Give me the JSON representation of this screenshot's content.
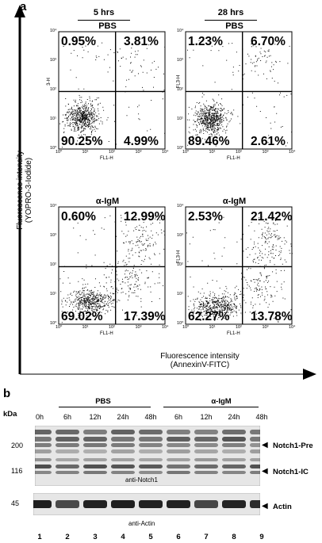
{
  "panel_a": {
    "letter": "a",
    "time_labels": [
      "5 hrs",
      "28 hrs"
    ],
    "y_axis_title": [
      "Fluorescence intensity",
      "(YOPRO-3-Iodide)"
    ],
    "x_axis_title": [
      "Fluorescence intensity",
      "(AnnexinV-FITC)"
    ],
    "y_ticks": [
      "10⁴",
      "10³",
      "10²",
      "10¹",
      "10⁰"
    ],
    "x_ticks": [
      "10⁰",
      "10¹",
      "10²",
      "10³",
      "10⁴"
    ],
    "plots": [
      {
        "treatment": "PBS",
        "ylabel": "3-H",
        "xlabel": "FL1-H",
        "quadrants": {
          "top_left": "0.95%",
          "top_right": "3.81%",
          "bottom_left": "90.25%",
          "bottom_right": "4.99%"
        }
      },
      {
        "treatment": "PBS",
        "ylabel": "FL3-H",
        "xlabel": "FL1-H",
        "quadrants": {
          "top_left": "1.23%",
          "top_right": "6.70%",
          "bottom_left": "89.46%",
          "bottom_right": "2.61%"
        }
      },
      {
        "treatment": "α-IgM",
        "ylabel": "",
        "xlabel": "FL1-H",
        "quadrants": {
          "top_left": "0.60%",
          "top_right": "12.99%",
          "bottom_left": "69.02%",
          "bottom_right": "17.39%"
        }
      },
      {
        "treatment": "α-IgM",
        "ylabel": "FL3-H",
        "xlabel": "FL1-H",
        "quadrants": {
          "top_left": "2.53%",
          "top_right": "21.42%",
          "bottom_left": "62.27%",
          "bottom_right": "13.78%"
        }
      }
    ]
  },
  "panel_b": {
    "letter": "b",
    "kda_label": "kDa",
    "groups": [
      "PBS",
      "α-IgM"
    ],
    "time_points": [
      "0h",
      "6h",
      "12h",
      "24h",
      "48h",
      "6h",
      "12h",
      "24h",
      "48h"
    ],
    "notch_markers": [
      "200",
      "116"
    ],
    "notch_bands": [
      "Notch1-Pre",
      "Notch1-IC"
    ],
    "notch_antibody": "anti-Notch1",
    "actin_marker": "45",
    "actin_band": "Actin",
    "actin_antibody": "anti-Actin",
    "lane_numbers": [
      "1",
      "2",
      "3",
      "4",
      "5",
      "6",
      "7",
      "8",
      "9"
    ]
  }
}
